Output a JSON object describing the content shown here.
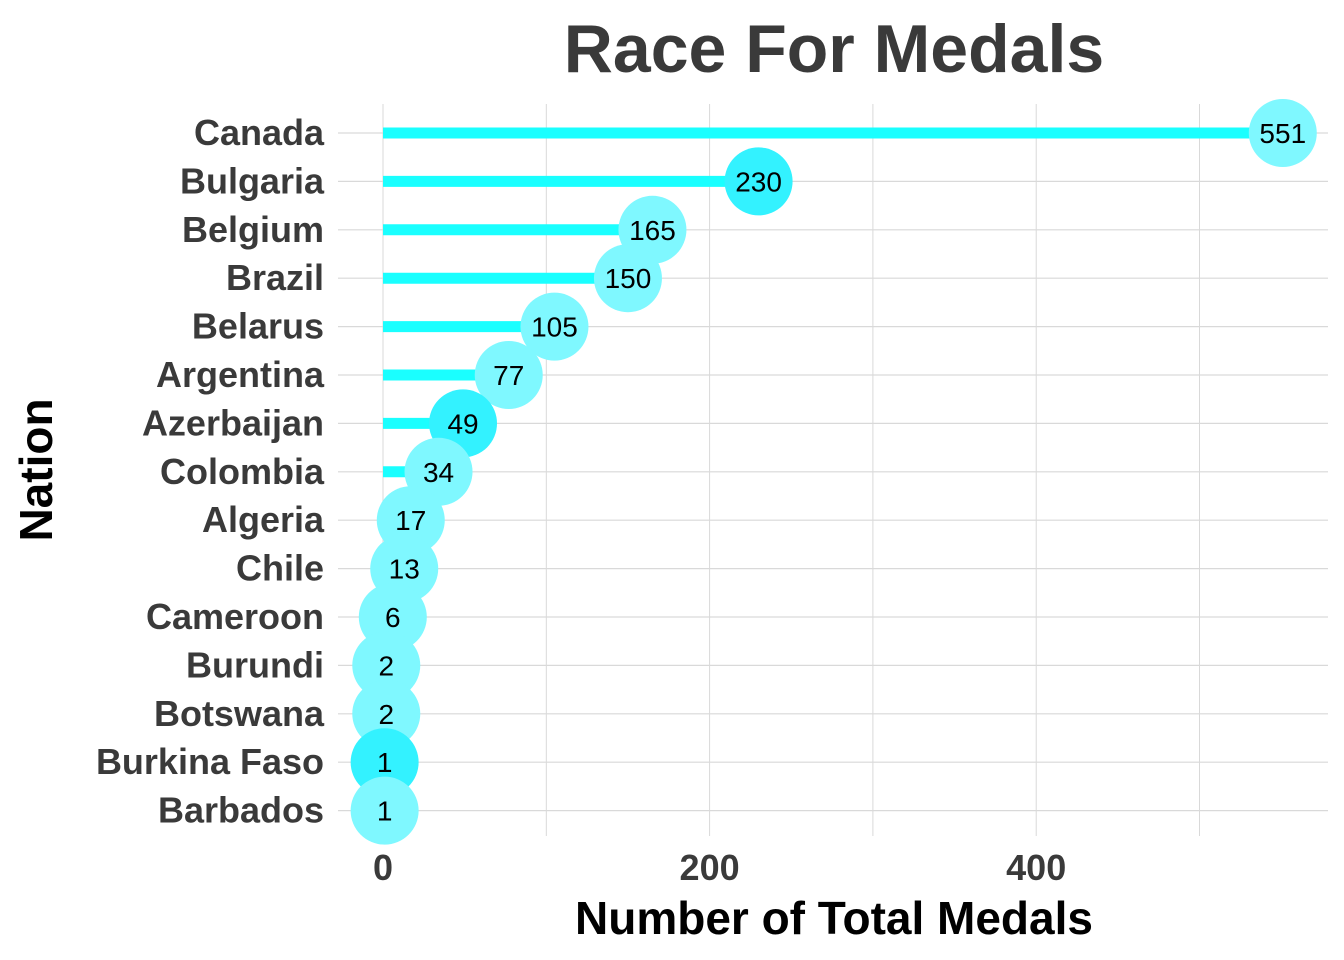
{
  "chart_data": {
    "type": "lollipop",
    "title": "Race For Medals",
    "xlabel": "Number of Total Medals",
    "ylabel": "Nation",
    "xlim": [
      0,
      580
    ],
    "x_ticks": [
      0,
      200,
      400
    ],
    "x_minor_gridlines": [
      100,
      300,
      500
    ],
    "grid": true,
    "categories": [
      "Canada",
      "Bulgaria",
      "Belgium",
      "Brazil",
      "Belarus",
      "Argentina",
      "Azerbaijan",
      "Colombia",
      "Algeria",
      "Chile",
      "Cameroon",
      "Burundi",
      "Botswana",
      "Burkina Faso",
      "Barbados"
    ],
    "values": [
      551,
      230,
      165,
      150,
      105,
      77,
      49,
      34,
      17,
      13,
      6,
      2,
      2,
      1,
      1
    ],
    "data_labels": [
      "551",
      "230",
      "165",
      "150",
      "105",
      "77",
      "49",
      "34",
      "17",
      "13",
      "6",
      "2",
      "2",
      "1",
      "1"
    ],
    "colors": {
      "stem": "#1affff",
      "point_light": "#7ff8ff",
      "point_dark": "#33f2ff",
      "grid": "#d9d9d9",
      "text": "#3a3a3a"
    }
  }
}
